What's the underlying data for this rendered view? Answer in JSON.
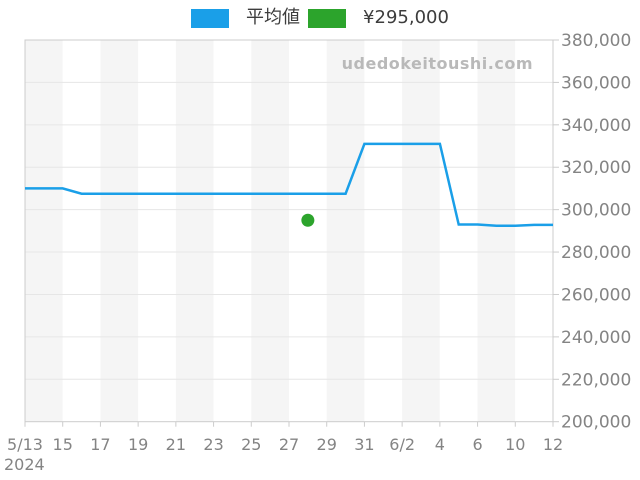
{
  "legend": {
    "items": [
      {
        "label": "平均値",
        "color": "#1a9fe8"
      },
      {
        "label": "¥295,000",
        "color": "#2ca42c"
      }
    ]
  },
  "watermark": "udedokeitoushi.com",
  "year_label": "2024",
  "colors": {
    "line": "#1a9fe8",
    "marker": "#2ca42c",
    "axis_text": "#848484",
    "grid_line": "#e6e6e6",
    "border": "#cccccc",
    "band_gray": "#f5f5f5",
    "band_white": "#ffffff",
    "legend_text": "#3d3d3d",
    "watermark_text": "#b9b9b9"
  },
  "chart_data": {
    "type": "line",
    "title": "",
    "xlabel": "",
    "ylabel": "",
    "grid": true,
    "legend_position": "top",
    "ylim": [
      200000,
      380000
    ],
    "y_ticks": [
      200000,
      220000,
      240000,
      260000,
      280000,
      300000,
      320000,
      340000,
      360000,
      380000
    ],
    "y_tick_labels": [
      "200,000",
      "220,000",
      "240,000",
      "260,000",
      "280,000",
      "300,000",
      "320,000",
      "340,000",
      "360,000",
      "380,000"
    ],
    "categories": [
      "5/13",
      "5/14",
      "5/15",
      "5/16",
      "5/17",
      "5/18",
      "5/19",
      "5/20",
      "5/21",
      "5/22",
      "5/23",
      "5/24",
      "5/25",
      "5/26",
      "5/27",
      "5/28",
      "5/29",
      "5/30",
      "5/31",
      "6/1",
      "6/2",
      "6/3",
      "6/4",
      "6/5",
      "6/6",
      "6/9",
      "6/10",
      "6/11",
      "6/12"
    ],
    "x_tick_every": 2,
    "x_tick_labels": [
      "5/13",
      "15",
      "17",
      "19",
      "21",
      "23",
      "25",
      "27",
      "29",
      "31",
      "6/2",
      "4",
      "6",
      "10",
      "12"
    ],
    "series": [
      {
        "name": "平均値",
        "color": "#1a9fe8",
        "values": [
          310000,
          310000,
          310000,
          307500,
          307500,
          307500,
          307500,
          307500,
          307500,
          307500,
          307500,
          307500,
          307500,
          307500,
          307500,
          307500,
          307500,
          307500,
          331000,
          331000,
          331000,
          331000,
          331000,
          293000,
          293000,
          292400,
          292400,
          292800,
          292800
        ]
      }
    ],
    "marker_point": {
      "name": "¥295,000",
      "category": "5/28",
      "value": 295000,
      "color": "#2ca42c"
    }
  }
}
